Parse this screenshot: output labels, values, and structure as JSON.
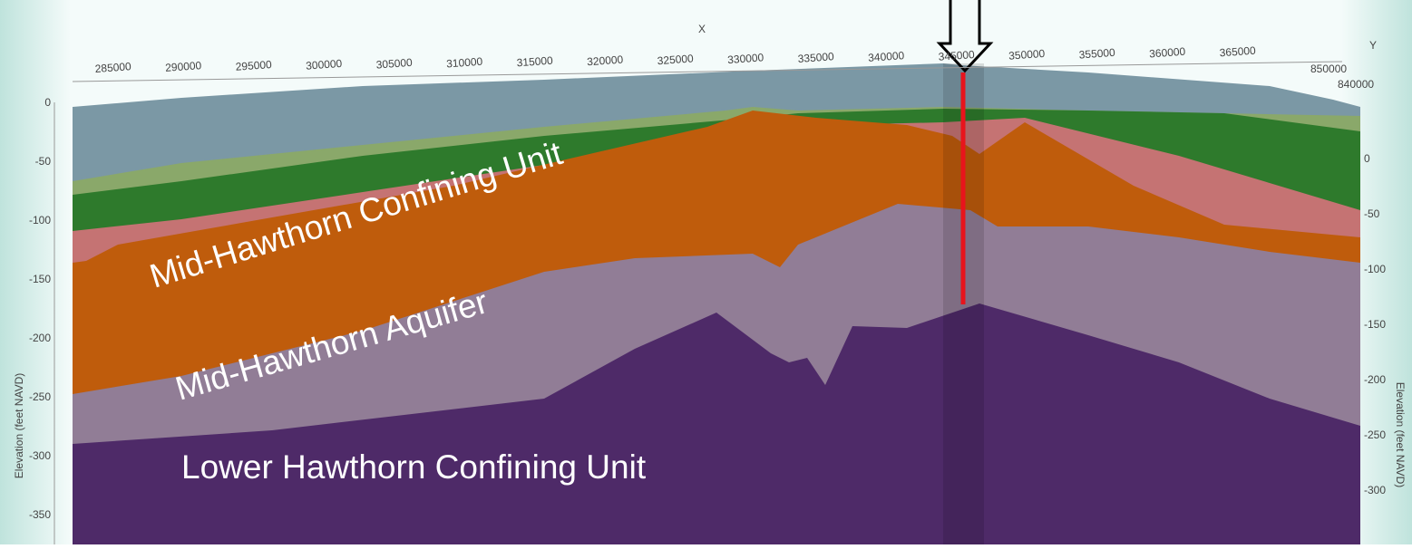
{
  "axes": {
    "x_title": "X",
    "y_title": "Y",
    "x_ticks": [
      "285000",
      "290000",
      "295000",
      "300000",
      "305000",
      "310000",
      "315000",
      "320000",
      "325000",
      "330000",
      "335000",
      "340000",
      "345000",
      "350000",
      "355000",
      "360000",
      "365000"
    ],
    "y_ticks": [
      "850000",
      "840000"
    ],
    "left_title": "Elevation (feet NAVD)",
    "left_ticks": [
      "0",
      "-50",
      "-100",
      "-150",
      "-200",
      "-250",
      "-300",
      "-350"
    ],
    "right_title": "Elevation (feet NAVD)",
    "right_ticks": [
      "0",
      "-50",
      "-100",
      "-150",
      "-200",
      "-250",
      "-300"
    ]
  },
  "labels": [
    "Mid-Hawthorn Confining Unit",
    "Mid-Hawthorn Aquifer",
    "Lower Hawthorn Confining Unit"
  ]
}
